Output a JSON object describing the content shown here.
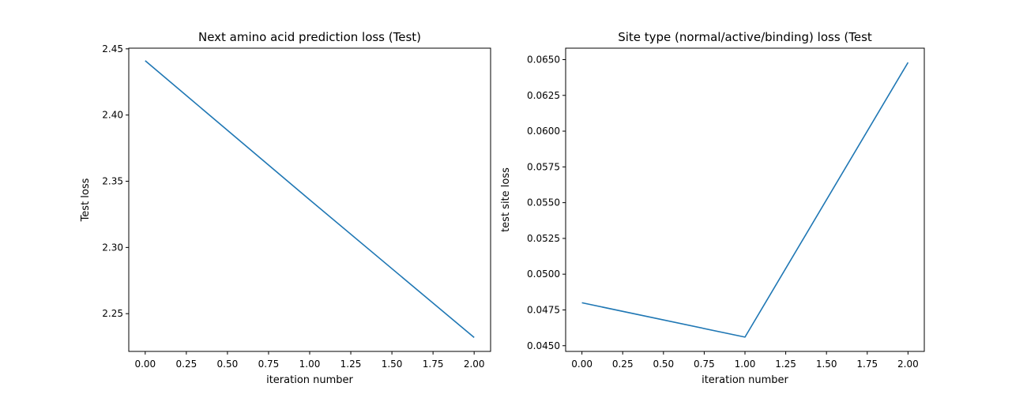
{
  "chart_data": [
    {
      "type": "line",
      "title": "Next amino acid prediction loss (Test)",
      "xlabel": "iteration number",
      "ylabel": "Test loss",
      "xlim": [
        -0.1,
        2.1
      ],
      "ylim": [
        2.2215,
        2.4505
      ],
      "xticks": [
        0.0,
        0.25,
        0.5,
        0.75,
        1.0,
        1.25,
        1.5,
        1.75,
        2.0
      ],
      "xtick_labels": [
        "0.00",
        "0.25",
        "0.50",
        "0.75",
        "1.00",
        "1.25",
        "1.50",
        "1.75",
        "2.00"
      ],
      "yticks": [
        2.25,
        2.3,
        2.35,
        2.4,
        2.45
      ],
      "ytick_labels": [
        "2.25",
        "2.30",
        "2.35",
        "2.40",
        "2.45"
      ],
      "grid": false,
      "series": [
        {
          "color": "#1f77b4",
          "x": [
            0,
            1,
            2
          ],
          "y": [
            2.441,
            2.336,
            2.232
          ]
        }
      ]
    },
    {
      "type": "line",
      "title": "Site type (normal/active/binding) loss (Test",
      "xlabel": "iteration number",
      "ylabel": "test site loss",
      "xlim": [
        -0.1,
        2.1
      ],
      "ylim": [
        0.0446,
        0.0658
      ],
      "xticks": [
        0.0,
        0.25,
        0.5,
        0.75,
        1.0,
        1.25,
        1.5,
        1.75,
        2.0
      ],
      "xtick_labels": [
        "0.00",
        "0.25",
        "0.50",
        "0.75",
        "1.00",
        "1.25",
        "1.50",
        "1.75",
        "2.00"
      ],
      "yticks": [
        0.045,
        0.0475,
        0.05,
        0.0525,
        0.055,
        0.0575,
        0.06,
        0.0625,
        0.065
      ],
      "ytick_labels": [
        "0.0450",
        "0.0475",
        "0.0500",
        "0.0525",
        "0.0550",
        "0.0575",
        "0.0600",
        "0.0625",
        "0.0650"
      ],
      "grid": false,
      "series": [
        {
          "color": "#1f77b4",
          "x": [
            0,
            1,
            2
          ],
          "y": [
            0.048,
            0.0456,
            0.0648
          ]
        }
      ]
    }
  ]
}
